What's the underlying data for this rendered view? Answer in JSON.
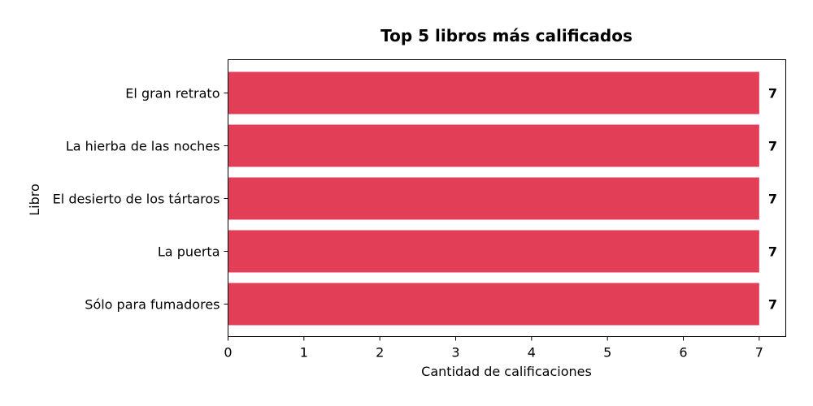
{
  "chart_data": {
    "type": "bar",
    "orientation": "horizontal",
    "title": "Top 5 libros más calificados",
    "xlabel": "Cantidad de calificaciones",
    "ylabel": "Libro",
    "categories": [
      "El gran retrato",
      "La hierba de las noches",
      "El desierto de los tártaros",
      "La puerta",
      "Sólo para fumadores"
    ],
    "values": [
      7,
      7,
      7,
      7,
      7
    ],
    "data_labels": [
      "7",
      "7",
      "7",
      "7",
      "7"
    ],
    "xlim": [
      0,
      7.35
    ],
    "xticks": [
      0,
      1,
      2,
      3,
      4,
      5,
      6,
      7
    ],
    "bar_color": "#e33e58",
    "grid": false,
    "legend": "none"
  }
}
